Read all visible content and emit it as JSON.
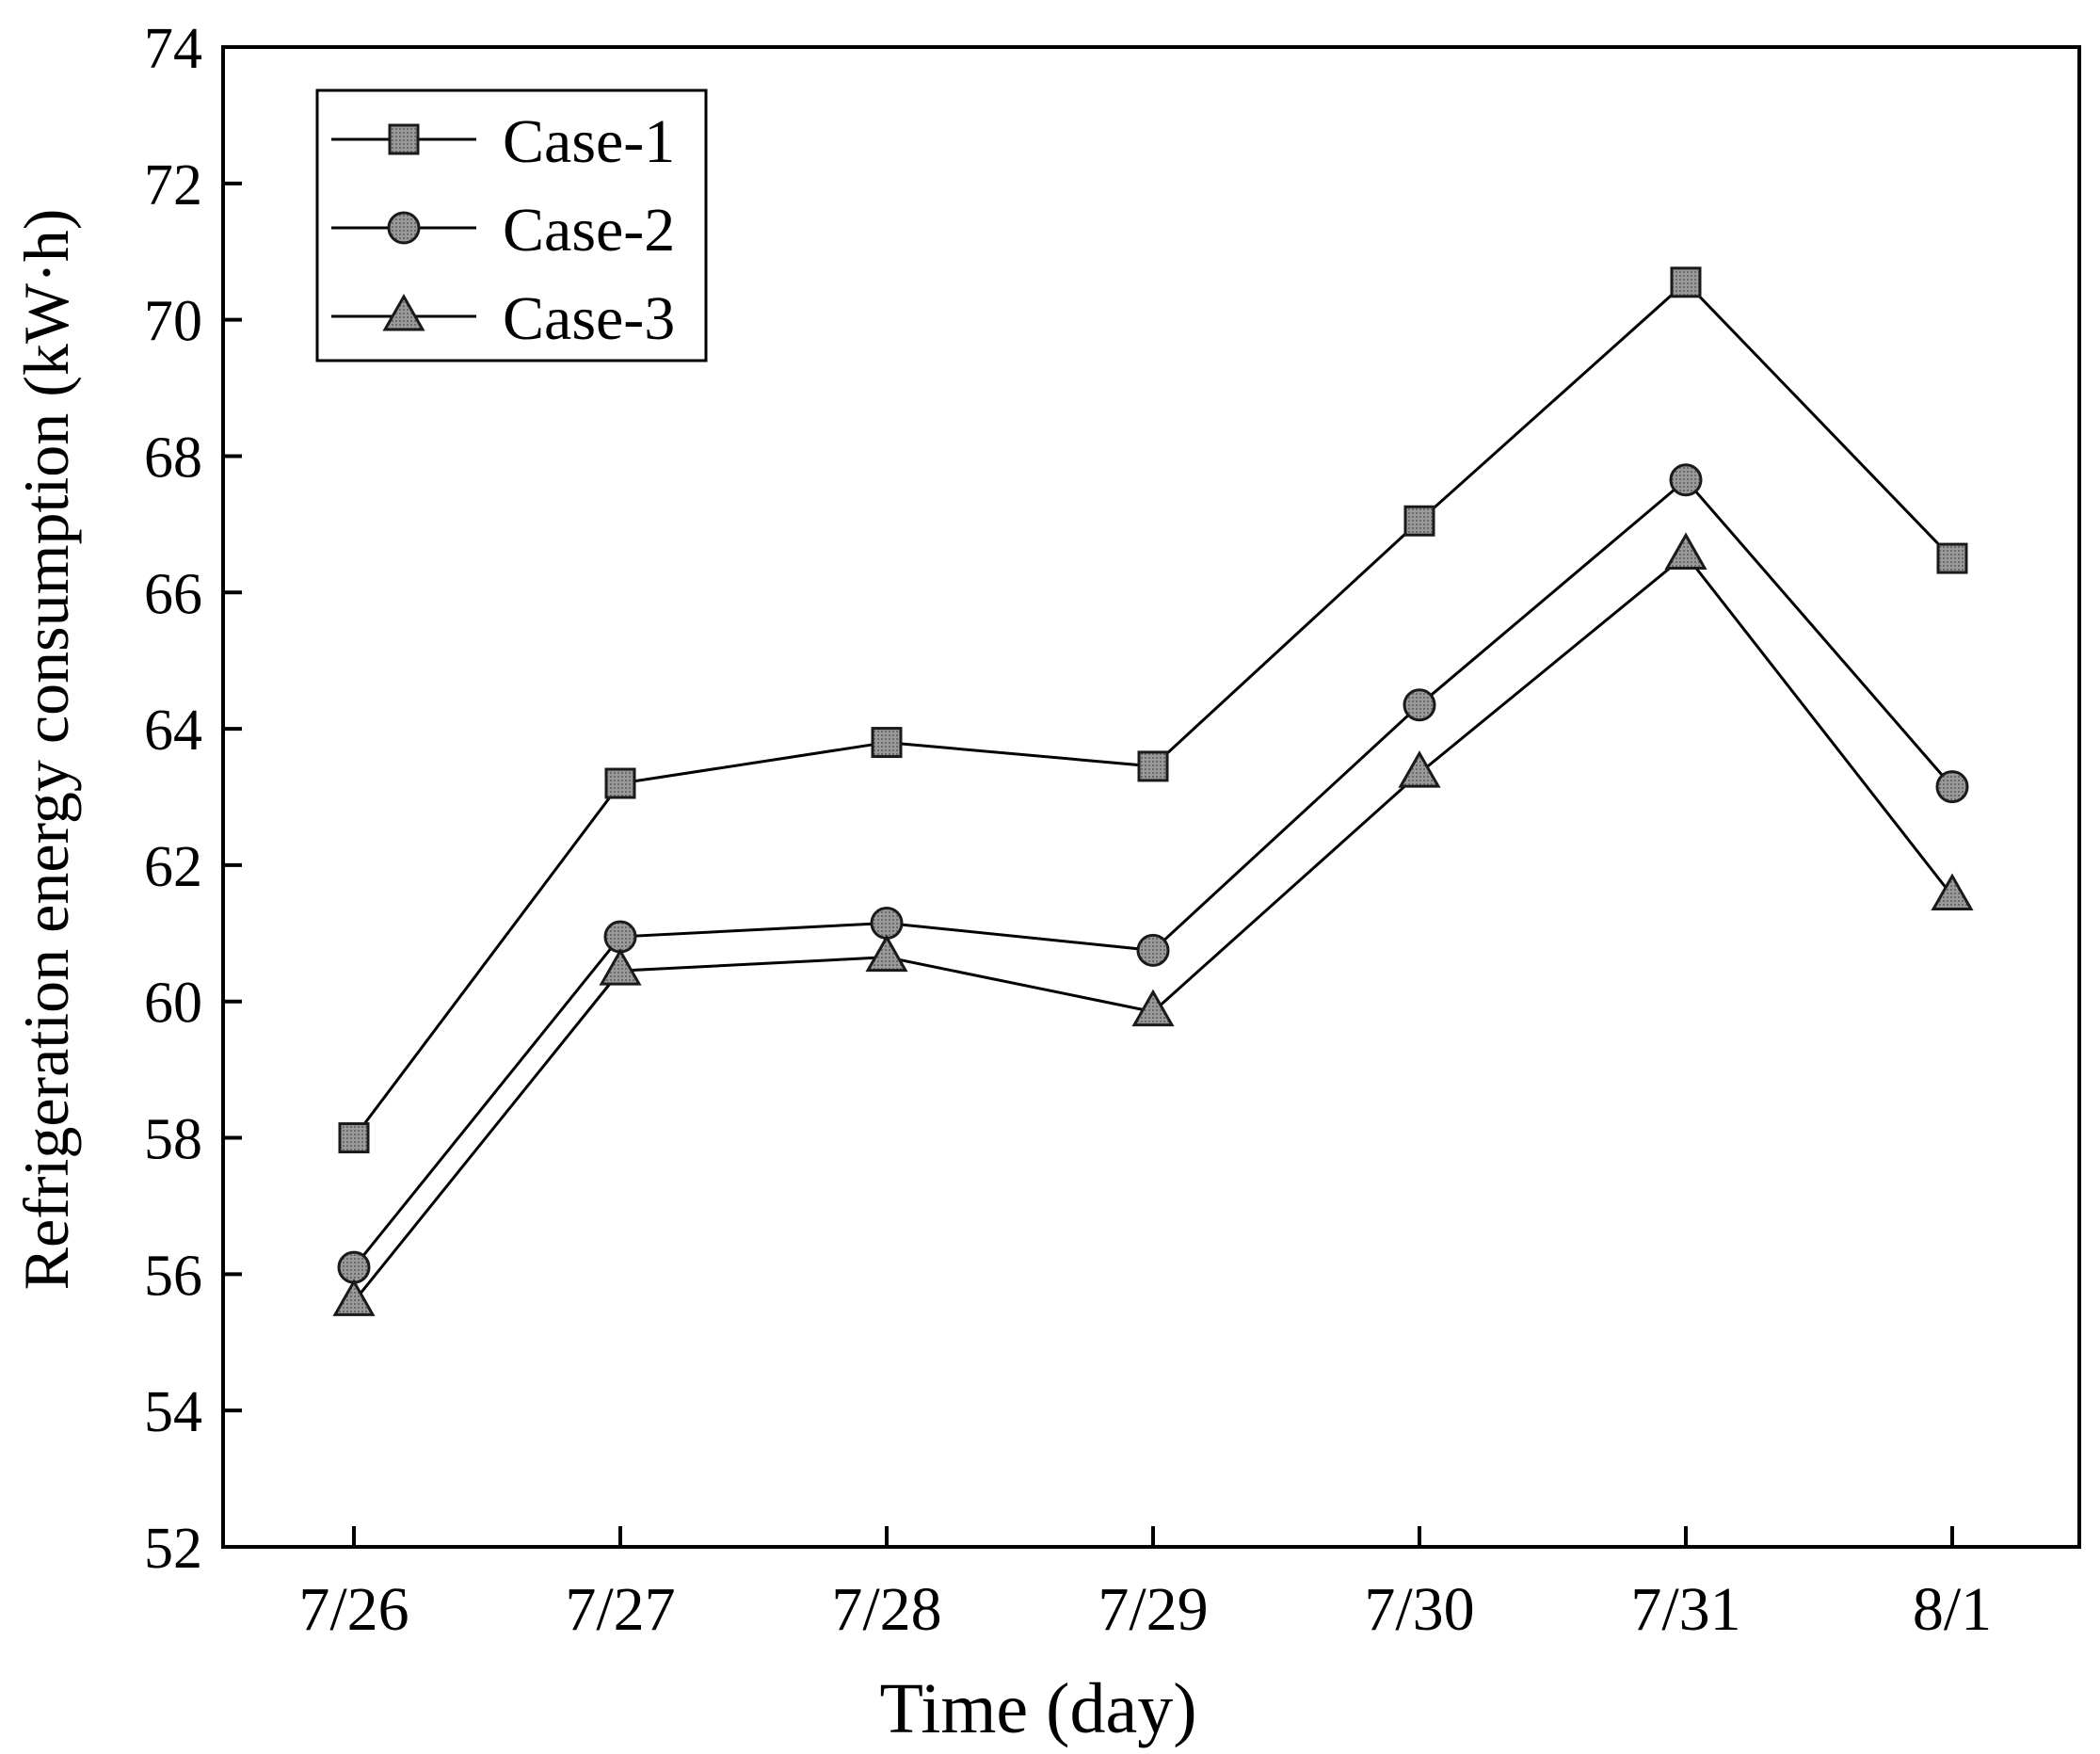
{
  "chart_data": {
    "type": "line",
    "xlabel": "Time (day)",
    "ylabel": "Refrigeration energy consumption (kW·h)",
    "categories": [
      "7/26",
      "7/27",
      "7/28",
      "7/29",
      "7/30",
      "7/31",
      "8/1"
    ],
    "ylim": [
      52,
      74
    ],
    "yticks": [
      52,
      54,
      56,
      58,
      60,
      62,
      64,
      66,
      68,
      70,
      72,
      74
    ],
    "legend_position": "top-left",
    "grid": false,
    "series": [
      {
        "name": "Case-1",
        "marker": "square",
        "values": [
          58.0,
          63.2,
          63.8,
          63.45,
          67.05,
          70.55,
          66.5
        ]
      },
      {
        "name": "Case-2",
        "marker": "circle",
        "values": [
          56.1,
          60.95,
          61.15,
          60.75,
          64.35,
          67.65,
          63.15
        ]
      },
      {
        "name": "Case-3",
        "marker": "triangle",
        "values": [
          55.6,
          60.45,
          60.65,
          59.85,
          63.35,
          66.55,
          61.55
        ]
      }
    ],
    "colors": {
      "line": "#000000",
      "marker_fill": "#8a8a8a",
      "marker_stroke": "#1a1a1a"
    }
  }
}
